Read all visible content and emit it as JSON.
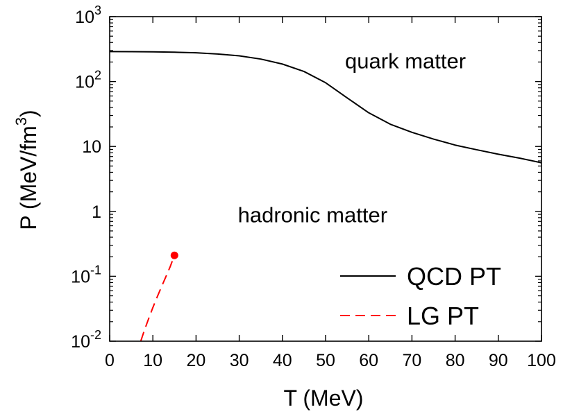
{
  "chart_data": {
    "type": "line",
    "xlabel": "T (MeV)",
    "ylabel": {
      "main": "P (MeV/fm",
      "sup": "3",
      "close": ")"
    },
    "xlim": [
      0,
      100
    ],
    "ylim": [
      0.01,
      1000
    ],
    "yscale": "log",
    "x_ticks": [
      "0",
      "10",
      "20",
      "30",
      "40",
      "50",
      "60",
      "70",
      "80",
      "90",
      "100"
    ],
    "y_ticks": [
      {
        "value": 0.01,
        "base": "10",
        "exp": "-2"
      },
      {
        "value": 0.1,
        "base": "10",
        "exp": "-1"
      },
      {
        "value": 1,
        "base": "1",
        "exp": ""
      },
      {
        "value": 10,
        "base": "10",
        "exp": ""
      },
      {
        "value": 100,
        "base": "10",
        "exp": "2"
      },
      {
        "value": 1000,
        "base": "10",
        "exp": "3"
      }
    ],
    "series": [
      {
        "name": "QCD PT",
        "color": "#000000",
        "dash": "solid",
        "x": [
          0,
          5,
          10,
          15,
          20,
          25,
          30,
          35,
          40,
          45,
          50,
          55,
          60,
          65,
          70,
          75,
          80,
          85,
          90,
          95,
          100
        ],
        "y": [
          290,
          289,
          287,
          283,
          277,
          266,
          249,
          222,
          186,
          143,
          96,
          56,
          33,
          22,
          16.5,
          13,
          10.5,
          8.9,
          7.6,
          6.6,
          5.6
        ]
      },
      {
        "name": "LG PT",
        "color": "#ff0000",
        "dash": "dashed",
        "x": [
          7.2,
          8,
          9,
          10,
          11,
          12,
          13,
          14,
          15
        ],
        "y": [
          0.01,
          0.0145,
          0.022,
          0.033,
          0.048,
          0.069,
          0.098,
          0.14,
          0.21
        ]
      }
    ],
    "endpoint": {
      "x": 15,
      "y": 0.21,
      "color": "#ff0000"
    },
    "annotations": [
      {
        "text": "quark matter",
        "x": 68.5,
        "y": 160
      },
      {
        "text": "hadronic matter",
        "x": 47,
        "y": 0.68
      }
    ],
    "legend": {
      "position": "bottom-right"
    },
    "grid": false
  }
}
